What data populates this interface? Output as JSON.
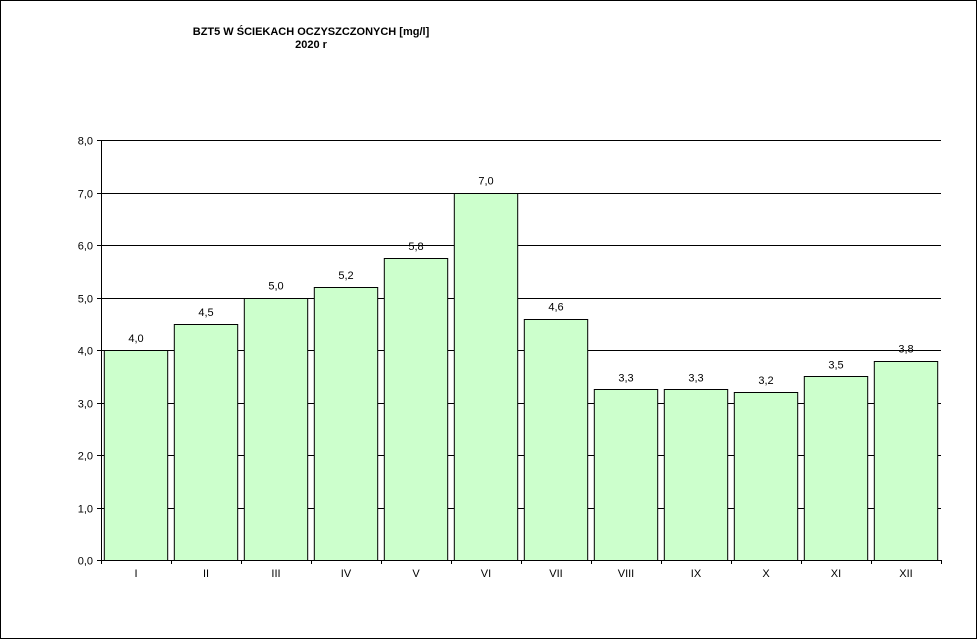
{
  "chart_data": {
    "type": "bar",
    "title": "BZT5 W ŚCIEKACH OCZYSZCZONYCH [mg/l]",
    "subtitle": "2020 r",
    "xlabel": "",
    "ylabel": "",
    "categories": [
      "I",
      "II",
      "III",
      "IV",
      "V",
      "VI",
      "VII",
      "VIII",
      "IX",
      "X",
      "XI",
      "XII"
    ],
    "values": [
      4.0,
      4.5,
      5.0,
      5.2,
      5.75,
      7.0,
      4.6,
      3.25,
      3.25,
      3.2,
      3.5,
      3.8
    ],
    "data_labels": [
      "4,0",
      "4,5",
      "5,0",
      "5,2",
      "5,8",
      "7,0",
      "4,6",
      "3,3",
      "3,3",
      "3,2",
      "3,5",
      "3,8"
    ],
    "ylim": [
      0,
      8
    ],
    "yticks": [
      0,
      1,
      2,
      3,
      4,
      5,
      6,
      7,
      8
    ],
    "ytick_labels": [
      "0,0",
      "1,0",
      "2,0",
      "3,0",
      "4,0",
      "5,0",
      "6,0",
      "7,0",
      "8,0"
    ],
    "grid": true,
    "legend": "none",
    "colors": {
      "bar_fill": "#ccffcc",
      "bar_stroke": "#000000",
      "grid": "#000000",
      "axis": "#000000",
      "background": "#ffffff"
    }
  }
}
